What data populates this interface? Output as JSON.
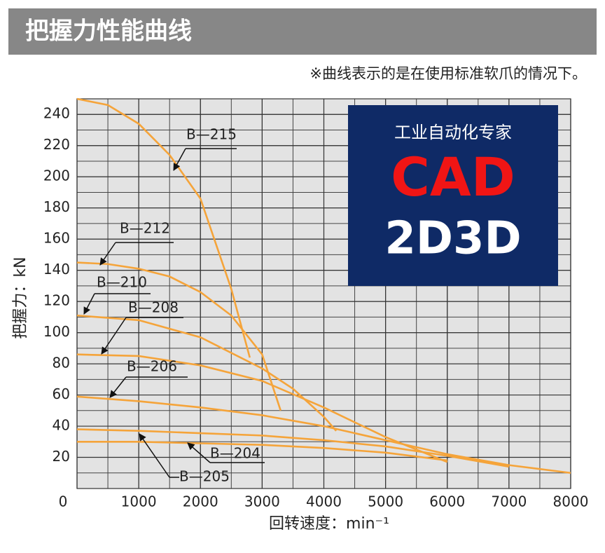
{
  "header": {
    "title": "把握力性能曲线",
    "note": "※曲线表示的是在使用标准软爪的情况下。"
  },
  "watermark": {
    "line1": "工业自动化专家",
    "line2": "CAD",
    "line3": "2D3D"
  },
  "chart_data": {
    "type": "line",
    "x_label": "回转速度：min⁻¹",
    "y_label": "把握力：kN",
    "xlim": [
      0,
      8000
    ],
    "ylim": [
      0,
      250
    ],
    "xticks": [
      0,
      1000,
      2000,
      3000,
      4000,
      5000,
      6000,
      7000,
      8000
    ],
    "yticks": [
      20,
      40,
      60,
      80,
      100,
      120,
      140,
      160,
      180,
      200,
      220,
      240
    ],
    "grid": true,
    "minor_grid": true,
    "series": [
      {
        "name": "B—215",
        "color": "#f5a43a",
        "x": [
          0,
          500,
          1000,
          1500,
          2000,
          2500,
          2800
        ],
        "values": [
          250,
          246,
          234,
          214,
          186,
          128,
          84
        ]
      },
      {
        "name": "B—212",
        "color": "#f5a43a",
        "x": [
          0,
          500,
          1000,
          1500,
          2000,
          2500,
          3000,
          3300
        ],
        "values": [
          145,
          144,
          141,
          136,
          126,
          111,
          86,
          50
        ]
      },
      {
        "name": "B—210",
        "color": "#f5a43a",
        "x": [
          0,
          1000,
          2000,
          3000,
          3500,
          4000,
          4200
        ],
        "values": [
          111,
          108,
          97,
          77,
          64,
          46,
          37
        ]
      },
      {
        "name": "B—208",
        "color": "#f5a43a",
        "x": [
          0,
          1000,
          2000,
          3000,
          4000,
          5000,
          6000
        ],
        "values": [
          86,
          85,
          79,
          69,
          52,
          33,
          17
        ]
      },
      {
        "name": "B—206",
        "color": "#f5a43a",
        "x": [
          0,
          1000,
          2000,
          3000,
          4000,
          5000,
          6000,
          7000,
          8000
        ],
        "values": [
          59,
          56,
          52,
          47,
          40,
          31,
          22,
          15,
          10
        ]
      },
      {
        "name": "B—205",
        "color": "#f5a43a",
        "x": [
          0,
          1000,
          2000,
          3000,
          4000,
          5000,
          6000,
          7000
        ],
        "values": [
          38,
          37,
          35.5,
          34,
          31,
          27,
          21,
          14
        ]
      },
      {
        "name": "B—204",
        "color": "#f5a43a",
        "x": [
          0,
          1000,
          2000,
          3000,
          4000,
          5000,
          6000
        ],
        "values": [
          30,
          30,
          29,
          28,
          26,
          23,
          18
        ]
      }
    ]
  }
}
